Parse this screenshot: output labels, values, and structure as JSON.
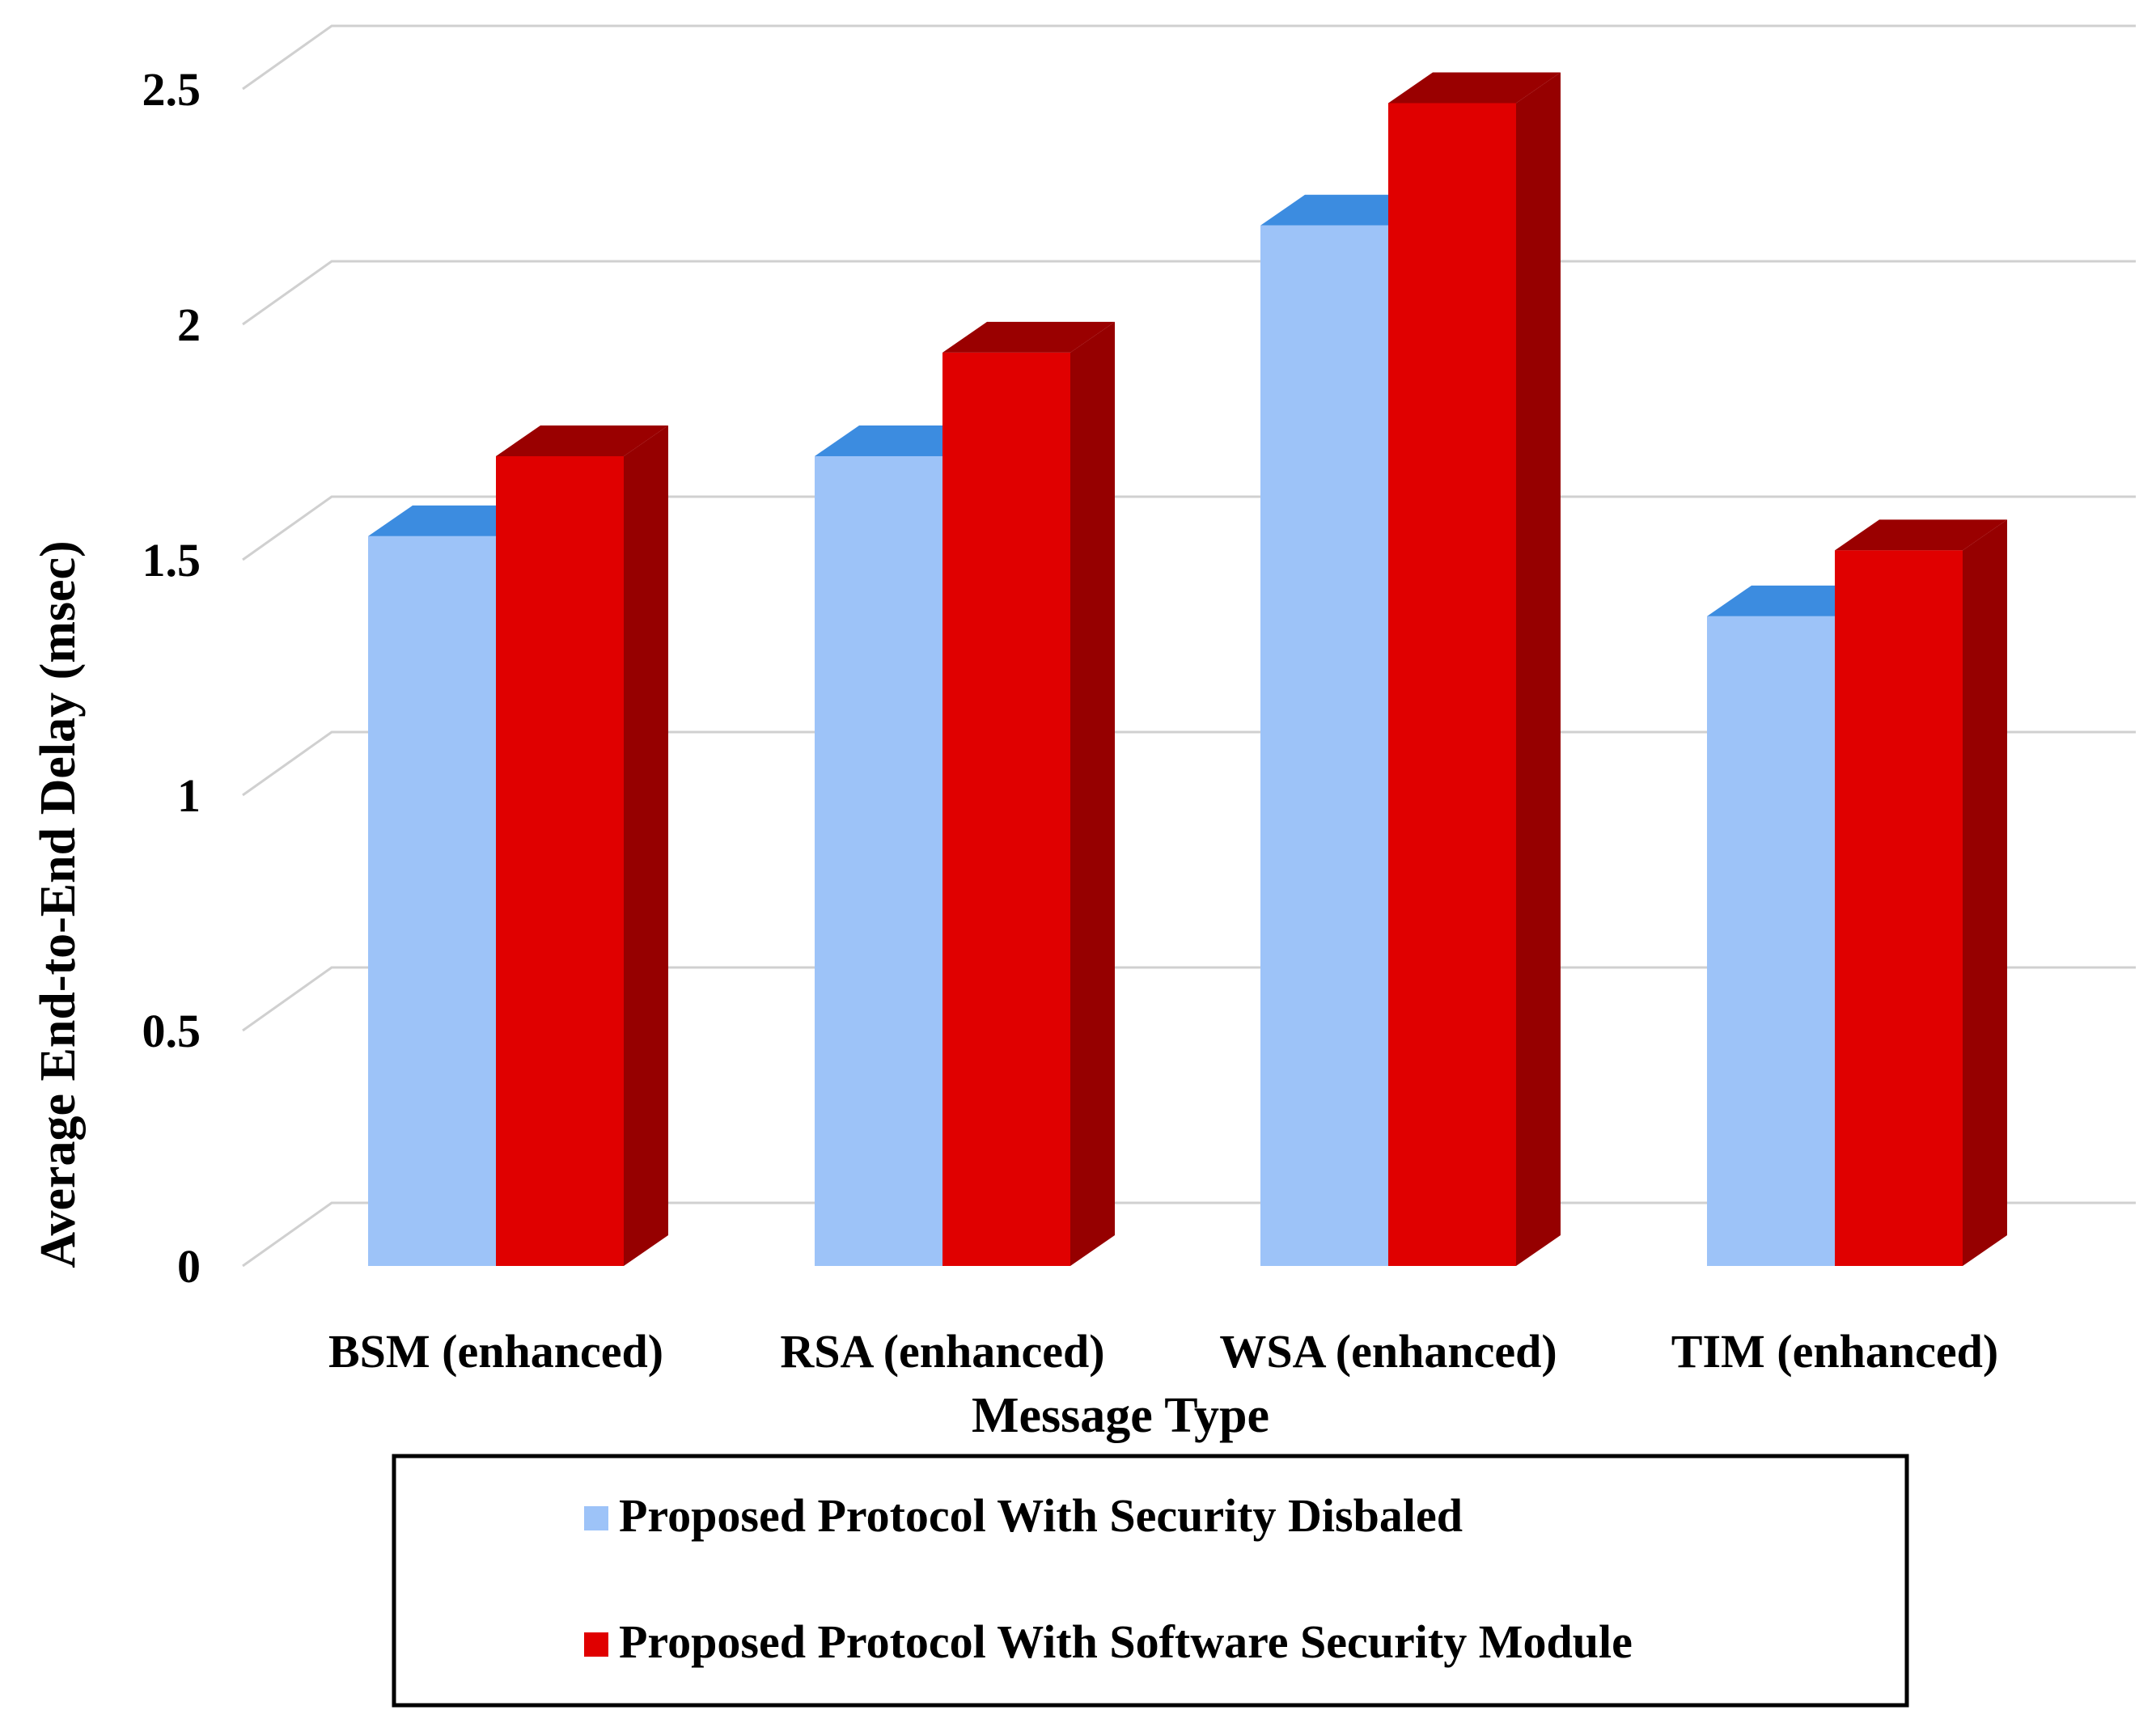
{
  "chart_data": {
    "type": "bar",
    "title": "",
    "xlabel": "Message Type",
    "ylabel": "Average End-to-End Delay (msec)",
    "ylim": [
      0,
      2.5
    ],
    "yticks": [
      "0",
      "0.5",
      "1",
      "1.5",
      "2",
      "2.5"
    ],
    "categories": [
      "BSM (enhanced)",
      "RSA (enhanced)",
      "WSA (enhanced)",
      "TIM (enhanced)"
    ],
    "series": [
      {
        "name": "Proposed Protocol With Security Disbaled",
        "values": [
          1.55,
          1.72,
          2.21,
          1.38
        ],
        "color": "#9dc3f8",
        "top_color": "#3c8ce0"
      },
      {
        "name": "Proposed Protocol With Software Security Module",
        "values": [
          1.72,
          1.94,
          2.47,
          1.52
        ],
        "color": "#e00000",
        "top_color": "#9a0000"
      }
    ],
    "grid": true,
    "legend_position": "bottom"
  }
}
